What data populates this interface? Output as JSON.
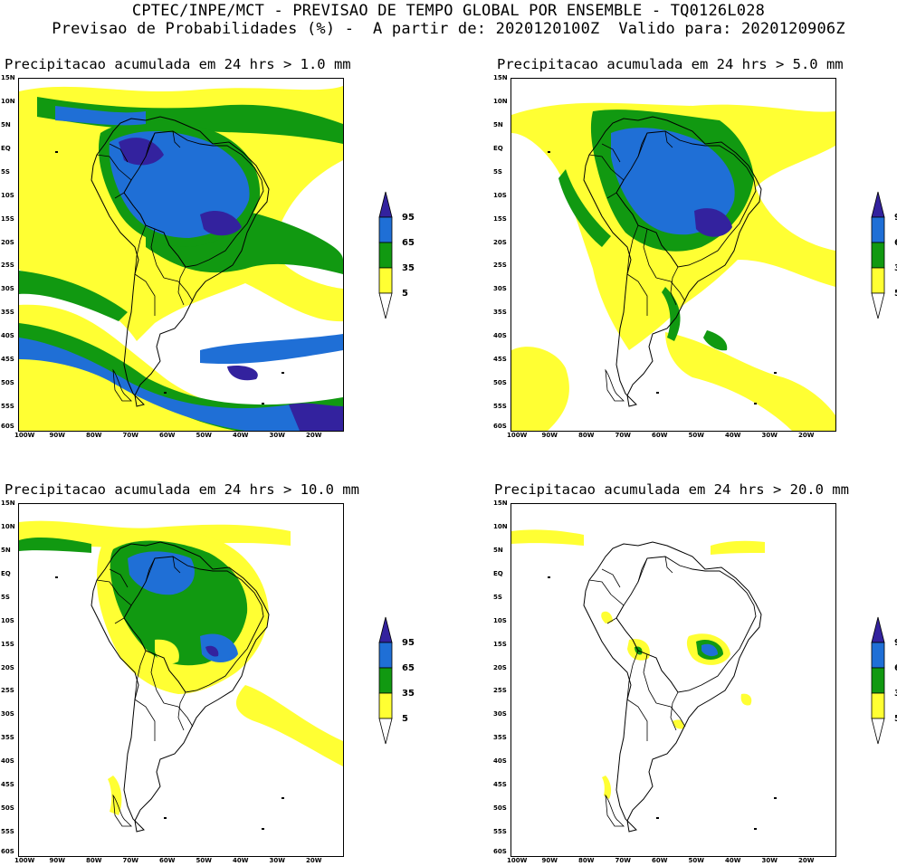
{
  "header": {
    "line1": "CPTEC/INPE/MCT - PREVISAO DE TEMPO GLOBAL POR ENSEMBLE - TQ0126L028",
    "line2": "Previsao de Probabilidades (%) -  A partir de: 2020120100Z  Valido para: 2020120906Z"
  },
  "lat_ticks": [
    "15N",
    "10N",
    "5N",
    "EQ",
    "5S",
    "10S",
    "15S",
    "20S",
    "25S",
    "30S",
    "35S",
    "40S",
    "45S",
    "50S",
    "55S",
    "60S"
  ],
  "lon_ticks": [
    "100W",
    "90W",
    "80W",
    "70W",
    "60W",
    "50W",
    "40W",
    "30W",
    "20W"
  ],
  "legend": {
    "levels": [
      "95",
      "65",
      "35",
      "5"
    ],
    "colors": {
      "p5": "#ffff33",
      "p35": "#119911",
      "p65": "#1f6fd6",
      "p95": "#33229e",
      "none": "#ffffff"
    }
  },
  "panels": [
    {
      "title": "Precipitacao acumulada em 24 hrs > 1.0 mm"
    },
    {
      "title": "Precipitacao acumulada em 24 hrs > 5.0 mm"
    },
    {
      "title": "Precipitacao acumulada em 24 hrs > 10.0 mm"
    },
    {
      "title": "Precipitacao acumulada em 24 hrs > 20.0 mm"
    }
  ]
}
